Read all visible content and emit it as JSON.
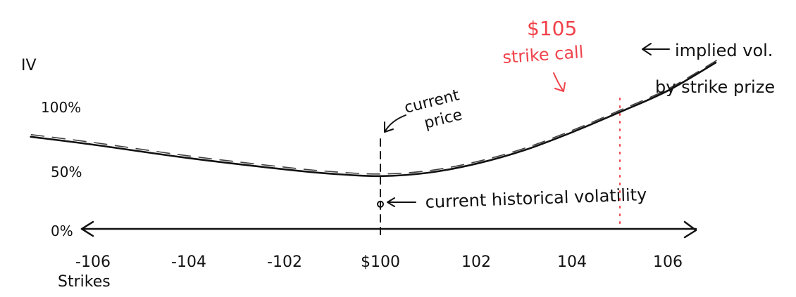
{
  "chart_data": {
    "type": "line",
    "ylabel": "IV",
    "xlabel": "Strikes",
    "x_ticks": [
      "-106",
      "-104",
      "-102",
      "$100",
      "102",
      "104",
      "106"
    ],
    "x_tick_values": [
      94,
      96,
      98,
      100,
      102,
      104,
      106
    ],
    "y_ticks": [
      "0%",
      "50%",
      "100%"
    ],
    "y_tick_values": [
      0,
      50,
      100
    ],
    "ylim": [
      0,
      100
    ],
    "series": [
      {
        "name": "implied vol. by strike prize",
        "x": [
          92.7,
          94,
          96,
          98,
          99,
          100,
          101,
          102,
          103,
          104,
          105,
          106,
          107
        ],
        "y": [
          82,
          75,
          63,
          53,
          49,
          47,
          50,
          58,
          70,
          86,
          104,
          123,
          148
        ]
      }
    ],
    "markers": {
      "current_price": {
        "x": 100,
        "label": "current price"
      },
      "historical_volatility": {
        "x": 100,
        "y": 22,
        "label": "current historical volatility"
      },
      "strike_call": {
        "x": 105,
        "label_line1": "$105",
        "label_line2": "strike call",
        "color": "#f0424a"
      }
    }
  }
}
